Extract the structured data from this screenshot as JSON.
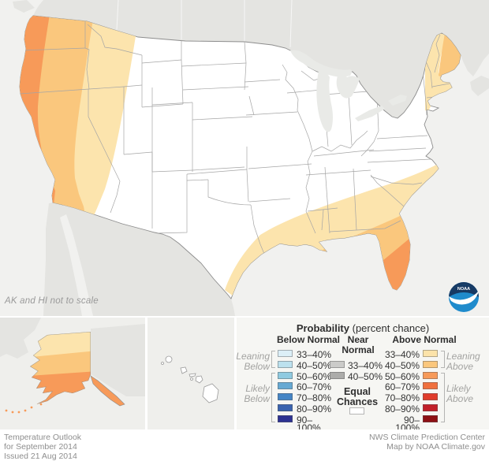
{
  "map": {
    "scale_note": "AK and HI not to scale",
    "logo_text": "NOAA"
  },
  "legend": {
    "title": "Probability",
    "title_suffix": " (percent chance)",
    "below": {
      "header": "Below Normal",
      "leaning": [
        "Leaning",
        "Below"
      ],
      "likely": [
        "Likely",
        "Below"
      ],
      "rows": [
        {
          "range": "33–40%",
          "color": "#dceff7"
        },
        {
          "range": "40–50%",
          "color": "#bce1ee"
        },
        {
          "range": "50–60%",
          "color": "#8fcae0"
        },
        {
          "range": "60–70%",
          "color": "#66a9d3"
        },
        {
          "range": "70–80%",
          "color": "#4585c5"
        },
        {
          "range": "80–90%",
          "color": "#3a63af"
        },
        {
          "range": "90–100%",
          "color": "#2d3292"
        }
      ]
    },
    "near": {
      "header": [
        "Near",
        "Normal"
      ],
      "rows": [
        {
          "range": "33–40%",
          "color": "#cbcbc9"
        },
        {
          "range": "40–50%",
          "color": "#acacaa"
        }
      ],
      "equal": [
        "Equal",
        "Chances"
      ],
      "equal_color": "#ffffff"
    },
    "above": {
      "header": "Above Normal",
      "leaning": [
        "Leaning",
        "Above"
      ],
      "likely": [
        "Likely",
        "Above"
      ],
      "rows": [
        {
          "range": "33–40%",
          "color": "#fce3a9"
        },
        {
          "range": "40–50%",
          "color": "#fac77d"
        },
        {
          "range": "50–60%",
          "color": "#f79a59"
        },
        {
          "range": "60–70%",
          "color": "#f0703e"
        },
        {
          "range": "70–80%",
          "color": "#e03c2b"
        },
        {
          "range": "80–90%",
          "color": "#c2202a"
        },
        {
          "range": "90–100%",
          "color": "#8e1014"
        }
      ]
    }
  },
  "map_bands": {
    "above_33_40": "#fce4ad",
    "above_40_50": "#fac77d",
    "above_50_60": "#f79a59"
  },
  "base_colors": {
    "ocean": "#f1f1ef",
    "foreign_land": "#e4e4e1",
    "lakes": "#e9eae7",
    "us_fill": "#ffffff",
    "state_line": "#a5a5a5",
    "us_outline": "#8c8c8c"
  },
  "footer": {
    "left": [
      "Temperature Outlook",
      "for September 2014",
      "Issued 21 Aug 2014"
    ],
    "right": [
      "NWS Climate Prediction Center",
      "Map by NOAA Climate.gov"
    ]
  }
}
